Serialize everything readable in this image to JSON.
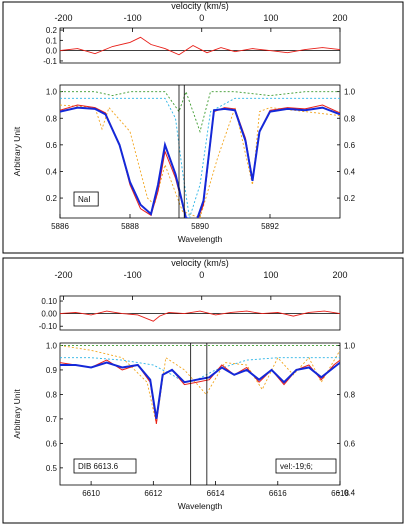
{
  "chart_data": [
    {
      "type": "line",
      "top_axis": {
        "title": "velocity (km/s)",
        "ticks": [
          -200,
          -100,
          0,
          100,
          200
        ],
        "range": [
          -205,
          200
        ]
      },
      "residual": {
        "yticks": [
          0.2,
          0.1,
          0.0,
          -0.1
        ],
        "ylim": [
          -0.12,
          0.22
        ],
        "series": [
          {
            "color": "#e8201a",
            "x": [
              5886,
              5886.5,
              5887,
              5887.5,
              5888,
              5888.3,
              5888.6,
              5889,
              5889.4,
              5889.8,
              5890.2,
              5890.6,
              5891,
              5891.5,
              5892,
              5892.5,
              5893,
              5893.5,
              5894
            ],
            "y": [
              0.0,
              0.02,
              -0.03,
              0.04,
              0.08,
              0.13,
              0.06,
              0.02,
              -0.04,
              0.05,
              -0.02,
              0.03,
              -0.01,
              0.02,
              0.0,
              -0.02,
              0.01,
              0.03,
              0.01
            ]
          }
        ]
      },
      "main": {
        "ylabel": "Arbitrary Unit",
        "xlabel": "Wavelength",
        "xlim": [
          5886,
          5894
        ],
        "xticks": [
          5886,
          5888,
          5890,
          5892
        ],
        "ylim": [
          0.05,
          1.05
        ],
        "left_yticks": [
          1.0,
          0.8,
          0.6,
          0.4,
          0.2
        ],
        "right_yticks": [
          1.0,
          0.8,
          0.6,
          0.4,
          0.2
        ],
        "label_box": "NaI",
        "series": [
          {
            "color": "#e8201a",
            "x": [
              5886,
              5886.5,
              5887,
              5887.3,
              5887.7,
              5888,
              5888.3,
              5888.6,
              5888.8,
              5889,
              5889.3,
              5889.6,
              5889.9,
              5890.1,
              5890.4,
              5890.7,
              5891,
              5891.3,
              5891.5,
              5891.7,
              5892,
              5892.5,
              5893,
              5893.5,
              5894
            ],
            "y": [
              0.86,
              0.9,
              0.88,
              0.84,
              0.6,
              0.3,
              0.12,
              0.07,
              0.25,
              0.55,
              0.35,
              0.05,
              0.02,
              0.15,
              0.85,
              0.88,
              0.87,
              0.65,
              0.34,
              0.7,
              0.86,
              0.88,
              0.87,
              0.9,
              0.84
            ]
          },
          {
            "color": "#1428d8",
            "x": [
              5886,
              5886.5,
              5887,
              5887.3,
              5887.7,
              5888,
              5888.3,
              5888.6,
              5888.8,
              5889,
              5889.3,
              5889.6,
              5889.9,
              5890.1,
              5890.4,
              5890.7,
              5891,
              5891.3,
              5891.5,
              5891.7,
              5892,
              5892.5,
              5893,
              5893.5,
              5894
            ],
            "y": [
              0.85,
              0.88,
              0.87,
              0.83,
              0.6,
              0.32,
              0.15,
              0.08,
              0.3,
              0.6,
              0.38,
              0.05,
              0.03,
              0.18,
              0.86,
              0.87,
              0.86,
              0.63,
              0.33,
              0.7,
              0.85,
              0.87,
              0.86,
              0.88,
              0.83
            ]
          },
          {
            "color": "#f2a51e",
            "dashed": true,
            "x": [
              5886,
              5887,
              5887.2,
              5887.4,
              5888,
              5888.5,
              5888.7,
              5889,
              5889.5,
              5890,
              5890.5,
              5891,
              5891.5,
              5891.7,
              5892,
              5893,
              5894
            ],
            "y": [
              0.9,
              0.88,
              0.72,
              0.88,
              0.7,
              0.2,
              0.15,
              0.45,
              0.1,
              0.05,
              0.5,
              0.88,
              0.3,
              0.85,
              0.88,
              0.85,
              0.82
            ]
          },
          {
            "color": "#2ab4e6",
            "dashed": true,
            "x": [
              5886,
              5887,
              5888,
              5889,
              5889.3,
              5889.5,
              5889.7,
              5890,
              5890.3,
              5891,
              5892,
              5893,
              5894
            ],
            "y": [
              0.95,
              0.95,
              0.95,
              0.95,
              0.8,
              0.4,
              0.05,
              0.3,
              0.85,
              0.95,
              0.95,
              0.95,
              0.95
            ]
          },
          {
            "color": "#3c9a2e",
            "dashed": true,
            "x": [
              5886,
              5887,
              5887.5,
              5888,
              5889,
              5889.4,
              5889.6,
              5890,
              5890.3,
              5891,
              5892,
              5893,
              5894
            ],
            "y": [
              1.0,
              1.0,
              0.97,
              1.0,
              1.0,
              0.85,
              1.0,
              0.7,
              1.0,
              1.0,
              0.97,
              1.0,
              1.0
            ]
          }
        ],
        "vlines": [
          5889.4,
          5889.55
        ]
      }
    },
    {
      "type": "line",
      "top_axis": {
        "title": "velocity (km/s)",
        "ticks": [
          -200,
          -100,
          0,
          100,
          200
        ],
        "range": [
          -205,
          200
        ]
      },
      "residual": {
        "yticks": [
          0.1,
          0.0,
          -0.1
        ],
        "ytick_labels": [
          "0.10",
          "0.00",
          "-0.10"
        ],
        "ylim": [
          -0.13,
          0.14
        ],
        "series": [
          {
            "color": "#e8201a",
            "x": [
              6609,
              6609.5,
              6610,
              6610.5,
              6611,
              6611.5,
              6612,
              6612.2,
              6612.5,
              6613,
              6613.5,
              6614,
              6614.5,
              6615,
              6615.5,
              6616,
              6616.5,
              6617,
              6617.5,
              6618
            ],
            "y": [
              0.0,
              0.01,
              -0.01,
              0.02,
              0.0,
              -0.01,
              -0.06,
              -0.02,
              0.01,
              0.0,
              0.02,
              -0.01,
              0.01,
              0.02,
              0.0,
              0.01,
              -0.02,
              0.01,
              0.02,
              0.0
            ]
          }
        ]
      },
      "main": {
        "ylabel": "Arbitrary Unit",
        "xlabel": "Wavelength",
        "xlim": [
          6609,
          6618
        ],
        "xticks": [
          6610,
          6612,
          6614,
          6616,
          6618
        ],
        "ylim": [
          0.43,
          1.01
        ],
        "left_yticks": [
          1.0,
          0.9,
          0.8,
          0.7,
          0.6,
          0.5
        ],
        "right_yticks": [
          1.0,
          0.8,
          0.6,
          0.4
        ],
        "label_box": "DIB 6613.6",
        "label_box_right": "vel:-19;6;",
        "series": [
          {
            "color": "#e8201a",
            "x": [
              6609,
              6609.5,
              6610,
              6610.5,
              6611,
              6611.5,
              6611.9,
              6612.1,
              6612.3,
              6612.6,
              6613,
              6613.4,
              6613.8,
              6614.2,
              6614.6,
              6615,
              6615.4,
              6615.8,
              6616.2,
              6616.6,
              6617,
              6617.4,
              6617.8,
              6618
            ],
            "y": [
              0.93,
              0.92,
              0.91,
              0.94,
              0.9,
              0.92,
              0.85,
              0.68,
              0.88,
              0.9,
              0.84,
              0.85,
              0.86,
              0.92,
              0.88,
              0.91,
              0.85,
              0.9,
              0.84,
              0.9,
              0.92,
              0.86,
              0.92,
              0.94
            ]
          },
          {
            "color": "#1428d8",
            "x": [
              6609,
              6609.5,
              6610,
              6610.5,
              6611,
              6611.5,
              6611.9,
              6612.1,
              6612.3,
              6612.6,
              6613,
              6613.4,
              6613.8,
              6614.2,
              6614.6,
              6615,
              6615.4,
              6615.8,
              6616.2,
              6616.6,
              6617,
              6617.4,
              6617.8,
              6618
            ],
            "y": [
              0.92,
              0.92,
              0.91,
              0.93,
              0.91,
              0.92,
              0.86,
              0.7,
              0.88,
              0.9,
              0.85,
              0.86,
              0.87,
              0.91,
              0.88,
              0.9,
              0.86,
              0.9,
              0.85,
              0.9,
              0.91,
              0.87,
              0.91,
              0.93
            ]
          },
          {
            "color": "#f2a51e",
            "dashed": true,
            "x": [
              6609,
              6610,
              6611,
              6611.8,
              6612.1,
              6612.4,
              6613,
              6613.7,
              6614.3,
              6615,
              6615.5,
              6616,
              6616.5,
              6617,
              6617.4,
              6618
            ],
            "y": [
              1.0,
              0.98,
              0.95,
              0.85,
              0.68,
              0.95,
              0.9,
              0.8,
              0.93,
              0.92,
              0.82,
              0.95,
              0.88,
              0.95,
              0.85,
              0.98
            ]
          },
          {
            "color": "#2ab4e6",
            "dashed": true,
            "x": [
              6609,
              6610,
              6611,
              6612,
              6612.6,
              6613,
              6613.4,
              6614,
              6615,
              6616,
              6617,
              6618
            ],
            "y": [
              0.95,
              0.95,
              0.94,
              0.92,
              0.88,
              0.85,
              0.86,
              0.9,
              0.94,
              0.95,
              0.95,
              0.95
            ]
          },
          {
            "color": "#3c9a2e",
            "dashed": true,
            "x": [
              6609,
              6610,
              6611,
              6612,
              6613,
              6614,
              6615,
              6616,
              6617,
              6618
            ],
            "y": [
              1.0,
              1.0,
              1.0,
              1.0,
              1.0,
              1.0,
              1.0,
              1.0,
              1.0,
              1.0
            ]
          }
        ],
        "vlines": [
          6613.2,
          6613.72
        ]
      }
    }
  ]
}
